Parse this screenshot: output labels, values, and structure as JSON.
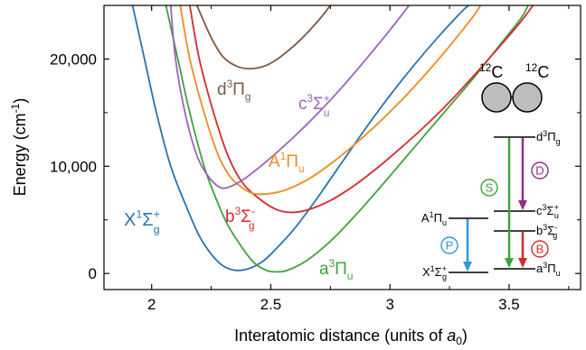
{
  "chart_data": {
    "type": "line",
    "xlabel": "Interatomic distance (units of ",
    "xlabel_var": "a",
    "xlabel_sub": "0",
    "xlabel_end": ")",
    "ylabel": "Energy (cm",
    "ylabel_sup": "-1",
    "ylabel_end": ")",
    "xlim": [
      1.8,
      3.8
    ],
    "ylim": [
      -1500,
      25000
    ],
    "xticks": [
      2,
      2.5,
      3,
      3.5
    ],
    "xtick_labels": [
      "2",
      "2.5",
      "3",
      "3.5"
    ],
    "yticks": [
      0,
      10000,
      20000
    ],
    "ytick_labels": [
      "0",
      "10,000",
      "20,000"
    ],
    "series": [
      {
        "label_main": "X",
        "label_sup": "1",
        "label_sym": "Σ",
        "label_sub": "g",
        "label_sup2": "+",
        "color": "#2a74ac",
        "points": [
          [
            1.92,
            25000
          ],
          [
            1.97,
            20000
          ],
          [
            2.02,
            15000
          ],
          [
            2.08,
            10000
          ],
          [
            2.15,
            6000
          ],
          [
            2.2,
            3500
          ],
          [
            2.25,
            1800
          ],
          [
            2.3,
            700
          ],
          [
            2.35,
            300
          ],
          [
            2.4,
            400
          ],
          [
            2.45,
            900
          ],
          [
            2.5,
            1800
          ],
          [
            2.6,
            4200
          ],
          [
            2.7,
            7200
          ],
          [
            2.8,
            10400
          ],
          [
            2.9,
            13600
          ],
          [
            3.0,
            16600
          ],
          [
            3.1,
            19400
          ],
          [
            3.2,
            22000
          ],
          [
            3.3,
            24400
          ],
          [
            3.33,
            25000
          ]
        ]
      },
      {
        "label_main": "a",
        "label_sup": "3",
        "label_sym": "Π",
        "label_sub": "u",
        "label_sup2": "",
        "color": "#3da33a",
        "points": [
          [
            2.06,
            25000
          ],
          [
            2.11,
            20000
          ],
          [
            2.16,
            15000
          ],
          [
            2.22,
            10000
          ],
          [
            2.27,
            7000
          ],
          [
            2.32,
            4500
          ],
          [
            2.38,
            2400
          ],
          [
            2.43,
            1000
          ],
          [
            2.48,
            300
          ],
          [
            2.52,
            150
          ],
          [
            2.57,
            300
          ],
          [
            2.65,
            1200
          ],
          [
            2.75,
            3000
          ],
          [
            2.85,
            5300
          ],
          [
            2.95,
            7800
          ],
          [
            3.05,
            10400
          ],
          [
            3.15,
            13000
          ],
          [
            3.25,
            15600
          ],
          [
            3.35,
            18200
          ],
          [
            3.45,
            21000
          ],
          [
            3.55,
            23800
          ],
          [
            3.58,
            25000
          ]
        ]
      },
      {
        "label_main": "b",
        "label_sup": "3",
        "label_sym": "Σ",
        "label_sub": "g",
        "label_sup2": "-",
        "color": "#d42b30",
        "points": [
          [
            2.16,
            25000
          ],
          [
            2.2,
            20000
          ],
          [
            2.26,
            15000
          ],
          [
            2.32,
            11000
          ],
          [
            2.38,
            8500
          ],
          [
            2.45,
            7000
          ],
          [
            2.52,
            6000
          ],
          [
            2.58,
            5700
          ],
          [
            2.65,
            5900
          ],
          [
            2.75,
            6800
          ],
          [
            2.85,
            8200
          ],
          [
            2.95,
            9900
          ],
          [
            3.05,
            11800
          ],
          [
            3.15,
            13800
          ],
          [
            3.25,
            16000
          ],
          [
            3.35,
            18400
          ],
          [
            3.45,
            20900
          ],
          [
            3.55,
            23500
          ],
          [
            3.6,
            25000
          ]
        ]
      },
      {
        "label_main": "A",
        "label_sup": "1",
        "label_sym": "Π",
        "label_sub": "u",
        "label_sup2": "",
        "color": "#f08a22",
        "points": [
          [
            2.12,
            25000
          ],
          [
            2.16,
            20000
          ],
          [
            2.22,
            15000
          ],
          [
            2.28,
            11000
          ],
          [
            2.33,
            9000
          ],
          [
            2.38,
            8000
          ],
          [
            2.42,
            7500
          ],
          [
            2.47,
            7400
          ],
          [
            2.55,
            7700
          ],
          [
            2.65,
            8700
          ],
          [
            2.75,
            10200
          ],
          [
            2.85,
            12000
          ],
          [
            2.95,
            14000
          ],
          [
            3.05,
            16200
          ],
          [
            3.15,
            18600
          ],
          [
            3.25,
            21200
          ],
          [
            3.35,
            24000
          ],
          [
            3.38,
            25000
          ]
        ]
      },
      {
        "label_main": "c",
        "label_sup": "3",
        "label_sym": "Σ",
        "label_sub": "u",
        "label_sup2": "+",
        "color": "#9b64b8",
        "points": [
          [
            2.08,
            25000
          ],
          [
            2.1,
            20000
          ],
          [
            2.14,
            15000
          ],
          [
            2.19,
            11000
          ],
          [
            2.24,
            9000
          ],
          [
            2.29,
            8000
          ],
          [
            2.34,
            8200
          ],
          [
            2.4,
            9000
          ],
          [
            2.5,
            10800
          ],
          [
            2.6,
            12800
          ],
          [
            2.7,
            15000
          ],
          [
            2.8,
            17400
          ],
          [
            2.9,
            20000
          ],
          [
            3.0,
            22700
          ],
          [
            3.08,
            25000
          ]
        ]
      },
      {
        "label_main": "d",
        "label_sup": "3",
        "label_sym": "Π",
        "label_sub": "g",
        "label_sup2": "",
        "color": "#7d5a46",
        "points": [
          [
            2.19,
            25000
          ],
          [
            2.25,
            22000
          ],
          [
            2.3,
            20200
          ],
          [
            2.36,
            19300
          ],
          [
            2.42,
            19100
          ],
          [
            2.48,
            19400
          ],
          [
            2.54,
            20200
          ],
          [
            2.62,
            21700
          ],
          [
            2.7,
            23600
          ],
          [
            2.75,
            25000
          ]
        ]
      }
    ],
    "inset": {
      "molecule_left": "C",
      "molecule_left_mass": "12",
      "molecule_right": "C",
      "molecule_right_mass": "12",
      "levels": [
        {
          "main": "d",
          "sup": "3",
          "sym": "Π",
          "sub": "g",
          "sup2": ""
        },
        {
          "main": "c",
          "sup": "3",
          "sym": "Σ",
          "sub": "u",
          "sup2": "+"
        },
        {
          "main": "b",
          "sup": "3",
          "sym": "Σ",
          "sub": "g",
          "sup2": "-"
        },
        {
          "main": "a",
          "sup": "3",
          "sym": "Π",
          "sub": "u",
          "sup2": ""
        },
        {
          "main": "A",
          "sup": "1",
          "sym": "Π",
          "sub": "u",
          "sup2": ""
        },
        {
          "main": "X",
          "sup": "1",
          "sym": "Σ",
          "sub": "g",
          "sup2": "+"
        }
      ],
      "transitions": [
        {
          "label": "S",
          "color": "#3da33a"
        },
        {
          "label": "D",
          "color": "#8e2f86"
        },
        {
          "label": "P",
          "color": "#2a9ad6"
        },
        {
          "label": "B",
          "color": "#d42b30"
        }
      ]
    }
  }
}
